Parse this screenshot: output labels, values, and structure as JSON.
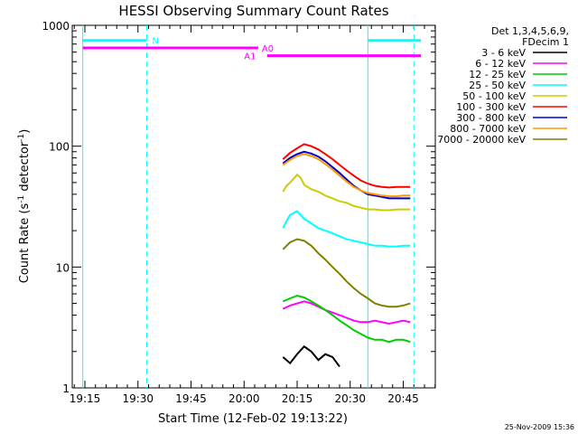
{
  "chart_data": {
    "type": "line",
    "title": "HESSI Observing Summary Count Rates",
    "xlabel": "Start Time (12-Feb-02 19:13:22)",
    "ylabel_main": "Count Rate (s",
    "ylabel_sup1": "-1",
    "ylabel_mid": " detector",
    "ylabel_sup2": "-1",
    "ylabel_end": ")",
    "y_scale": "log",
    "xlim": [
      "19:13",
      "20:54"
    ],
    "ylim": [
      1,
      1000
    ],
    "xtick_labels": [
      "19:15",
      "19:30",
      "19:45",
      "20:00",
      "20:15",
      "20:30",
      "20:45"
    ],
    "xtick_minutes": [
      0,
      15,
      30,
      45,
      60,
      75,
      90
    ],
    "ytick_labels": [
      "1",
      "10",
      "100",
      "1000"
    ],
    "ytick_values": [
      1,
      10,
      100,
      1000
    ],
    "legend_header": [
      "Det 1,3,4,5,6,9,",
      "FDecim 1"
    ],
    "legend_placement": "top-right outside plot",
    "series": [
      {
        "name": "3 - 6 keV",
        "color": "#000000",
        "x_minutes": [
          56,
          58,
          60,
          62,
          64,
          66,
          68,
          70,
          72
        ],
        "values": [
          1.8,
          1.6,
          1.9,
          2.2,
          2.0,
          1.7,
          1.9,
          1.8,
          1.5
        ]
      },
      {
        "name": "6 - 12 keV",
        "color": "#ff00ff",
        "x_minutes": [
          56,
          58,
          60,
          62,
          64,
          66,
          68,
          70,
          72,
          74,
          76,
          78,
          80,
          82,
          84,
          86,
          88,
          90,
          92
        ],
        "values": [
          4.5,
          4.8,
          5.0,
          5.2,
          5.0,
          4.7,
          4.4,
          4.2,
          4.0,
          3.8,
          3.6,
          3.5,
          3.5,
          3.6,
          3.5,
          3.4,
          3.5,
          3.6,
          3.5
        ]
      },
      {
        "name": "12 - 25 keV",
        "color": "#00cc00",
        "x_minutes": [
          56,
          58,
          60,
          62,
          64,
          66,
          68,
          70,
          72,
          74,
          76,
          78,
          80,
          82,
          84,
          86,
          88,
          90,
          92
        ],
        "values": [
          5.2,
          5.5,
          5.8,
          5.6,
          5.2,
          4.8,
          4.4,
          4.0,
          3.6,
          3.3,
          3.0,
          2.8,
          2.6,
          2.5,
          2.5,
          2.4,
          2.5,
          2.5,
          2.4
        ]
      },
      {
        "name": "25 - 50 keV",
        "color": "#00ffff",
        "x_minutes": [
          56,
          57,
          58,
          60,
          62,
          64,
          66,
          68,
          70,
          72,
          74,
          76,
          78,
          80,
          82,
          84,
          86,
          88,
          90,
          92
        ],
        "values": [
          21,
          24,
          27,
          29,
          25,
          23,
          21,
          20,
          19,
          18,
          17,
          16.5,
          16,
          15.5,
          15,
          15,
          14.8,
          14.8,
          15,
          15
        ]
      },
      {
        "name": "50 - 100 keV",
        "color": "#cccc00",
        "x_minutes": [
          56,
          57,
          58,
          60,
          61,
          62,
          64,
          66,
          68,
          70,
          72,
          74,
          76,
          78,
          80,
          82,
          84,
          86,
          88,
          90,
          92
        ],
        "values": [
          42,
          47,
          50,
          58,
          55,
          48,
          44,
          42,
          39,
          37,
          35,
          34,
          32,
          31,
          30,
          30,
          29.5,
          29.5,
          30,
          30,
          30
        ]
      },
      {
        "name": "100 - 300 keV",
        "color": "#ff0000",
        "x_minutes": [
          56,
          58,
          60,
          62,
          64,
          66,
          68,
          70,
          72,
          74,
          76,
          78,
          80,
          82,
          84,
          86,
          88,
          90,
          92
        ],
        "values": [
          78,
          88,
          96,
          104,
          100,
          94,
          86,
          78,
          70,
          63,
          57,
          52,
          49,
          47,
          46,
          45.5,
          46,
          46,
          46
        ]
      },
      {
        "name": "300 - 800 keV",
        "color": "#0000cc",
        "x_minutes": [
          56,
          58,
          60,
          62,
          64,
          66,
          68,
          70,
          72,
          74,
          76,
          78,
          80,
          82,
          84,
          86,
          88,
          90,
          92
        ],
        "values": [
          72,
          80,
          86,
          90,
          87,
          82,
          75,
          67,
          60,
          53,
          47,
          43,
          40,
          39,
          38,
          37,
          37,
          37,
          37
        ]
      },
      {
        "name": "800 - 7000 keV",
        "color": "#ff9900",
        "x_minutes": [
          56,
          58,
          60,
          62,
          64,
          66,
          68,
          70,
          72,
          74,
          76,
          78,
          80,
          82,
          84,
          86,
          88,
          90,
          92
        ],
        "values": [
          70,
          77,
          83,
          86,
          83,
          78,
          71,
          64,
          57,
          51,
          46,
          43,
          41,
          40,
          39,
          38.5,
          38.5,
          39,
          39
        ]
      },
      {
        "name": "7000 - 20000 keV",
        "color": "#808000",
        "x_minutes": [
          56,
          58,
          60,
          62,
          64,
          66,
          68,
          70,
          72,
          74,
          76,
          78,
          80,
          82,
          84,
          86,
          88,
          90,
          92
        ],
        "values": [
          14,
          16,
          17,
          16.5,
          15,
          13,
          11.5,
          10,
          8.8,
          7.6,
          6.7,
          6.0,
          5.5,
          5.0,
          4.8,
          4.7,
          4.7,
          4.8,
          5.0
        ]
      }
    ],
    "annotation_lines": {
      "color": "#00ffff",
      "solid_minutes": [
        -0.6,
        80
      ],
      "dashed_minutes": [
        17.5,
        93
      ]
    },
    "attenuator_bars": [
      {
        "label": "N",
        "color": "#00ffff",
        "level": 750,
        "from_minutes": -0.6,
        "to_minutes": 17.5,
        "label_minutes": 19
      },
      {
        "label": "N",
        "color": "#00ffff",
        "level": 750,
        "from_minutes": 80,
        "to_minutes": 95,
        "label_minutes": null
      },
      {
        "label": "A0",
        "color": "#ff00ff",
        "level": 650,
        "from_minutes": -0.6,
        "to_minutes": 49,
        "label_minutes": 50
      },
      {
        "label": "A1",
        "color": "#ff00ff",
        "level": 560,
        "from_minutes": 51.5,
        "to_minutes": 95,
        "label_minutes": 45
      }
    ]
  },
  "footer": {
    "timestamp": "25-Nov-2009 15:36"
  }
}
